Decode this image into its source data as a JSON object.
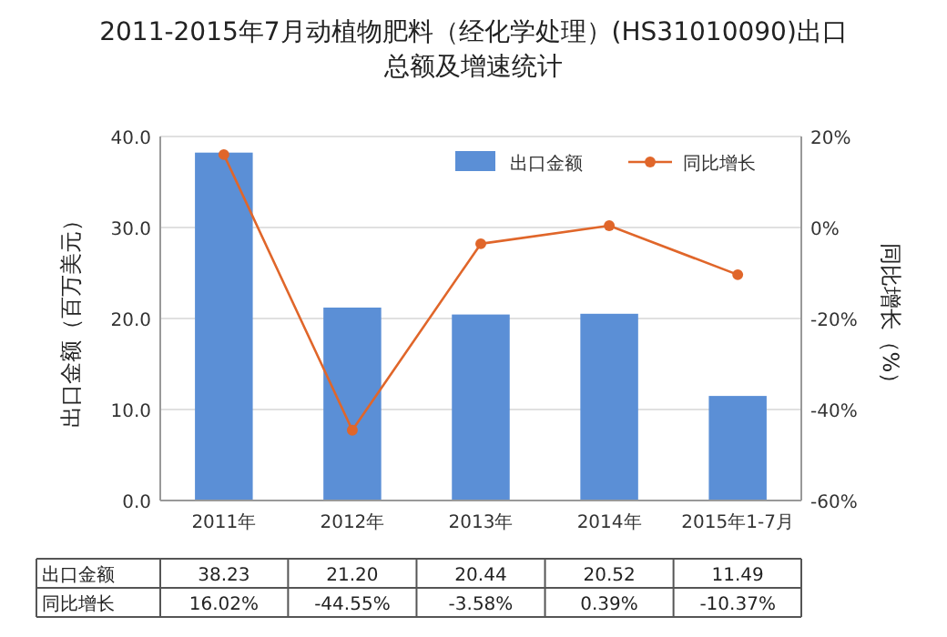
{
  "chart_data": {
    "type": "bar",
    "title": "2011-2015年7月动植物肥料（经化学处理）(HS31010090)出口总额及增速统计",
    "categories": [
      "2011年",
      "2012年",
      "2013年",
      "2014年",
      "2015年1-7月"
    ],
    "series": [
      {
        "name": "出口金额",
        "color": "#5b8fd6",
        "values": [
          38.23,
          21.2,
          20.44,
          20.52,
          11.49
        ],
        "value_labels": [
          "38.23",
          "21.20",
          "20.44",
          "20.52",
          "11.49"
        ]
      },
      {
        "name": "同比增长",
        "type": "line",
        "axis": "y2",
        "color": "#e0662a",
        "marker": "circle",
        "values": [
          16.02,
          -44.55,
          -3.58,
          0.39,
          -10.37
        ],
        "value_labels": [
          "16.02%",
          "-44.55%",
          "-3.58%",
          "0.39%",
          "-10.37%"
        ]
      }
    ],
    "ylabel": "出口金额（百万美元）",
    "y2label": "同比增长（%）",
    "ylim": [
      0,
      40
    ],
    "yticks": [
      {
        "value": 0,
        "label": "0.0"
      },
      {
        "value": 10,
        "label": "10.0"
      },
      {
        "value": 20,
        "label": "20.0"
      },
      {
        "value": 30,
        "label": "30.0"
      },
      {
        "value": 40,
        "label": "40.0"
      }
    ],
    "y2lim": [
      -60,
      20
    ],
    "y2ticks": [
      {
        "value": -60,
        "label": "-60%"
      },
      {
        "value": -40,
        "label": "-40%"
      },
      {
        "value": -20,
        "label": "-20%"
      },
      {
        "value": 0,
        "label": "0%"
      },
      {
        "value": 20,
        "label": "20%"
      }
    ],
    "grid": "y",
    "legend": "top right"
  }
}
